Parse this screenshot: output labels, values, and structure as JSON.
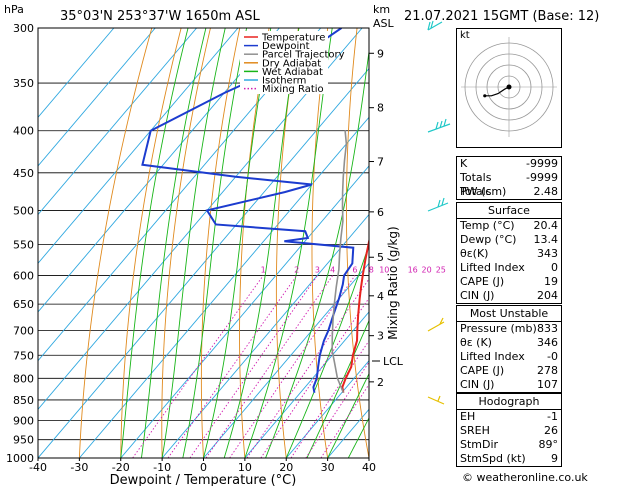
{
  "header": {
    "left": "35°03'N  253°37'W  1650m  ASL",
    "right": "21.07.2021  15GMT  (Base: 12)"
  },
  "axes": {
    "pressure_unit": "hPa",
    "km_unit": "km",
    "km_unit2": "ASL",
    "xlabel": "Dewpoint / Temperature (°C)",
    "right_label": "Mixing Ratio (g/kg)",
    "lcl_label": "LCL"
  },
  "legend": [
    "Temperature",
    "Dewpoint",
    "Parcel Trajectory",
    "Dry Adiabat",
    "Wet Adiabat",
    "Isotherm",
    "Mixing Ratio"
  ],
  "credit": "© weatheronline.co.uk",
  "chart_data": {
    "type": "line",
    "title": "35°03'N  253°37'W  1650m  ASL",
    "xlabel": "Dewpoint / Temperature (°C)",
    "ylabel": "hPa",
    "xlim": [
      -40,
      40
    ],
    "ylim": [
      1000,
      300
    ],
    "x_ticks": [
      -40,
      -30,
      -20,
      -10,
      0,
      10,
      20,
      30,
      40
    ],
    "pressure_ticks": [
      300,
      350,
      400,
      450,
      500,
      550,
      600,
      650,
      700,
      750,
      800,
      850,
      900,
      950,
      1000
    ],
    "km_ticks": [
      {
        "label": "9",
        "p": 322
      },
      {
        "label": "8",
        "p": 375
      },
      {
        "label": "7",
        "p": 436
      },
      {
        "label": "6",
        "p": 502
      },
      {
        "label": "5",
        "p": 570
      },
      {
        "label": "4",
        "p": 635
      },
      {
        "label": "3",
        "p": 710
      },
      {
        "label": "2",
        "p": 808
      }
    ],
    "lcl_pressure": 765,
    "mixing_ratio_labels": [
      "1",
      "2",
      "3",
      "4",
      "6",
      "8",
      "10",
      "16",
      "20",
      "25"
    ],
    "series": [
      {
        "name": "Temperature",
        "color": "#e8231f",
        "points": [
          [
            20.4,
            833
          ],
          [
            19,
            820
          ],
          [
            18,
            800
          ],
          [
            17,
            775
          ],
          [
            15,
            750
          ],
          [
            13,
            720
          ],
          [
            11,
            700
          ],
          [
            8,
            670
          ],
          [
            5,
            640
          ],
          [
            3,
            620
          ],
          [
            1,
            600
          ],
          [
            -1.5,
            575
          ],
          [
            -3,
            560
          ],
          [
            -4.5,
            545
          ],
          [
            -6,
            530
          ],
          [
            -8,
            510
          ],
          [
            -10,
            495
          ],
          [
            -12,
            480
          ],
          [
            -14.5,
            460
          ],
          [
            -17,
            440
          ],
          [
            -20,
            420
          ],
          [
            -23,
            400
          ],
          [
            -27,
            375
          ],
          [
            -32,
            350
          ],
          [
            -37,
            325
          ],
          [
            -42,
            300
          ]
        ]
      },
      {
        "name": "Dewpoint",
        "color": "#1c3ccf",
        "points": [
          [
            13.4,
            833
          ],
          [
            12,
            820
          ],
          [
            11,
            800
          ],
          [
            9,
            775
          ],
          [
            7,
            750
          ],
          [
            5,
            720
          ],
          [
            4,
            700
          ],
          [
            2,
            670
          ],
          [
            0,
            640
          ],
          [
            -2,
            615
          ],
          [
            -3.5,
            600
          ],
          [
            -4,
            580
          ],
          [
            -7,
            555
          ],
          [
            -25,
            545
          ],
          [
            -20,
            540
          ],
          [
            -22,
            530
          ],
          [
            -45,
            520
          ],
          [
            -50,
            500
          ],
          [
            -35,
            475
          ],
          [
            -30,
            465
          ],
          [
            -50,
            455
          ],
          [
            -75,
            440
          ],
          [
            -80,
            400
          ],
          [
            -70,
            360
          ],
          [
            -60,
            330
          ],
          [
            -55,
            300
          ]
        ]
      },
      {
        "name": "Parcel Trajectory",
        "color": "#909090",
        "points": [
          [
            20.4,
            833
          ],
          [
            16,
            800
          ],
          [
            12,
            765
          ],
          [
            9,
            740
          ],
          [
            6,
            710
          ],
          [
            3,
            680
          ],
          [
            0,
            650
          ],
          [
            -3,
            620
          ],
          [
            -6,
            590
          ],
          [
            -9,
            565
          ],
          [
            -12,
            540
          ],
          [
            -15,
            515
          ],
          [
            -18,
            495
          ],
          [
            -21,
            475
          ],
          [
            -24,
            455
          ],
          [
            -27,
            435
          ],
          [
            -30,
            415
          ],
          [
            -33,
            400
          ]
        ]
      }
    ]
  },
  "indices": {
    "k_label": "K",
    "k": "-9999",
    "tt_label": "Totals Totals",
    "tt": "-9999",
    "pw_label": "PW (cm)",
    "pw": "2.48"
  },
  "surface": {
    "title": "Surface",
    "temp_label": "Temp (°C)",
    "temp": "20.4",
    "dewp_label": "Dewp (°C)",
    "dewp": "13.4",
    "theta_label": "θε(K)",
    "theta": "343",
    "li_label": "Lifted Index",
    "li": "0",
    "cape_label": "CAPE (J)",
    "cape": "19",
    "cin_label": "CIN (J)",
    "cin": "204"
  },
  "most_unstable": {
    "title": "Most Unstable",
    "pres_label": "Pressure (mb)",
    "pres": "833",
    "theta_label": "θε (K)",
    "theta": "346",
    "li_label": "Lifted Index",
    "li": "-0",
    "cape_label": "CAPE (J)",
    "cape": "278",
    "cin_label": "CIN (J)",
    "cin": "107"
  },
  "hodograph": {
    "title": "Hodograph",
    "kt_label": "kt",
    "eh_label": "EH",
    "eh": "-1",
    "sreh_label": "SREH",
    "sreh": "26",
    "stmdir_label": "StmDir",
    "stmdir": "89°",
    "stmspd_label": "StmSpd (kt)",
    "stmspd": "9",
    "trace_kt": [
      [
        0,
        0
      ],
      [
        -2,
        -1
      ],
      [
        -5,
        -3
      ],
      [
        -8,
        -4
      ],
      [
        -11,
        -4
      ]
    ]
  }
}
